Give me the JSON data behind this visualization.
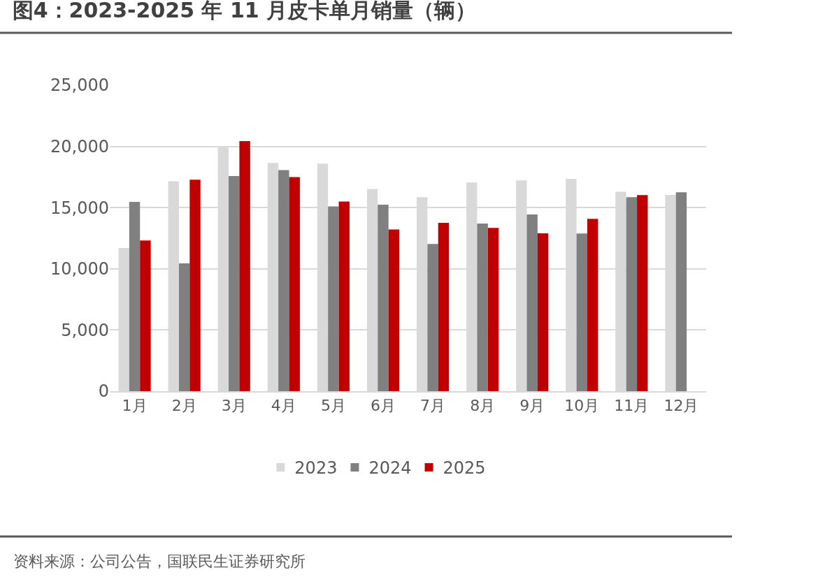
{
  "chart_data": {
    "type": "bar",
    "title": "图4：2023-2025 年 11 月皮卡单月销量（辆）",
    "categories": [
      "1月",
      "2月",
      "3月",
      "4月",
      "5月",
      "6月",
      "7月",
      "8月",
      "9月",
      "10月",
      "11月",
      "12月"
    ],
    "series": [
      {
        "name": "2023",
        "color": "#d9d9d9",
        "values": [
          11700,
          17150,
          19950,
          18650,
          18600,
          16530,
          15850,
          17050,
          17220,
          17350,
          16300,
          16040
        ]
      },
      {
        "name": "2024",
        "color": "#808080",
        "values": [
          15470,
          10450,
          17580,
          18070,
          15100,
          15240,
          12030,
          13700,
          14440,
          12880,
          15850,
          16250
        ]
      },
      {
        "name": "2025",
        "color": "#c00000",
        "values": [
          12310,
          17280,
          20430,
          17500,
          15500,
          13220,
          13760,
          13340,
          12900,
          14080,
          16020,
          null
        ]
      }
    ],
    "ylim": [
      0,
      25000
    ],
    "yticks": [
      {
        "value": 0,
        "label": "0"
      },
      {
        "value": 5000,
        "label": "5,000"
      },
      {
        "value": 10000,
        "label": "10,000"
      },
      {
        "value": 15000,
        "label": "15,000"
      },
      {
        "value": 20000,
        "label": "20,000"
      },
      {
        "value": 25000,
        "label": "25,000"
      }
    ],
    "grid": "y",
    "legend": "bottom",
    "annotations": [
      "资料来源：公司公告，国联民生证券研究所"
    ]
  }
}
